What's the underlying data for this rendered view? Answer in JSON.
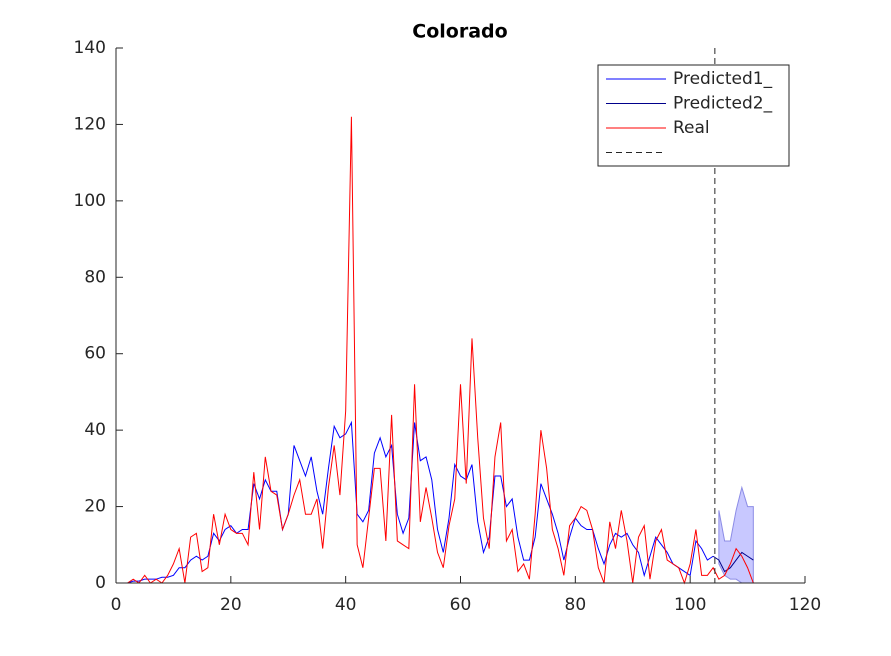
{
  "chart_data": {
    "type": "line",
    "title": "Colorado",
    "x": [
      1,
      2,
      3,
      4,
      5,
      6,
      7,
      8,
      9,
      10,
      11,
      12,
      13,
      14,
      15,
      16,
      17,
      18,
      19,
      20,
      21,
      22,
      23,
      24,
      25,
      26,
      27,
      28,
      29,
      30,
      31,
      32,
      33,
      34,
      35,
      36,
      37,
      38,
      39,
      40,
      41,
      42,
      43,
      44,
      45,
      46,
      47,
      48,
      49,
      50,
      51,
      52,
      53,
      54,
      55,
      56,
      57,
      58,
      59,
      60,
      61,
      62,
      63,
      64,
      65,
      66,
      67,
      68,
      69,
      70,
      71,
      72,
      73,
      74,
      75,
      76,
      77,
      78,
      79,
      80,
      81,
      82,
      83,
      84,
      85,
      86,
      87,
      88,
      89,
      90,
      91,
      92,
      93,
      94,
      95,
      96,
      97,
      98,
      99,
      100,
      101,
      102,
      103,
      104,
      105,
      106,
      107,
      108,
      109,
      110,
      111
    ],
    "series": [
      {
        "name": "Predicted1_",
        "color": "#0000ff",
        "values": [
          0,
          0,
          0.5,
          0.5,
          1,
          1,
          1,
          1.5,
          1.5,
          2,
          4,
          4,
          6,
          7,
          6,
          7,
          13,
          11,
          14,
          15,
          13,
          14,
          14,
          26,
          22,
          27,
          24,
          24,
          14,
          18,
          36,
          32,
          28,
          33,
          24,
          18,
          30,
          41,
          38,
          39,
          42,
          18,
          16,
          19,
          34,
          38,
          33,
          36,
          18,
          13,
          17,
          42,
          32,
          33,
          27,
          14,
          8,
          17,
          31,
          28,
          27,
          31,
          16,
          8,
          12,
          28,
          28,
          20,
          22,
          12,
          6,
          6,
          12,
          26,
          22,
          18,
          13,
          6,
          12,
          17,
          15,
          14,
          14,
          9,
          5,
          10,
          13,
          12,
          13,
          10,
          8,
          2,
          7,
          12,
          10,
          8,
          5,
          4,
          3,
          2,
          11,
          9,
          6,
          7,
          null,
          null,
          null,
          null,
          null,
          null,
          null
        ]
      },
      {
        "name": "Predicted2_",
        "color": "#00008b",
        "x": [
          104,
          105,
          106,
          107,
          108,
          109,
          110,
          111
        ],
        "values": [
          7,
          6,
          3,
          4,
          6,
          8,
          7,
          6
        ]
      },
      {
        "name": "Real",
        "color": "#ff0000",
        "values": [
          0,
          0,
          1,
          0,
          2,
          0,
          1,
          0,
          2,
          5,
          9,
          0,
          12,
          13,
          3,
          4,
          18,
          10,
          18,
          14,
          13,
          13,
          10,
          29,
          14,
          33,
          24,
          23,
          14,
          18,
          23,
          27,
          18,
          18,
          22,
          9,
          25,
          36,
          23,
          45,
          122,
          10,
          4,
          17,
          30,
          30,
          11,
          44,
          11,
          10,
          9,
          52,
          16,
          25,
          17,
          8,
          4,
          15,
          22,
          52,
          26,
          64,
          38,
          17,
          9,
          33,
          42,
          11,
          14,
          3,
          5,
          1,
          18,
          40,
          30,
          14,
          9,
          2,
          15,
          17,
          20,
          19,
          14,
          4,
          0,
          16,
          9,
          19,
          11,
          0,
          12,
          15,
          1,
          11,
          14,
          6,
          5,
          4,
          0,
          5,
          14,
          2,
          2,
          4,
          1,
          2,
          5,
          9,
          7,
          4,
          0
        ]
      }
    ],
    "band": {
      "color": "#c8c8ff",
      "edge": "#8c8ce6",
      "x": [
        105,
        106,
        107,
        108,
        109,
        110,
        111
      ],
      "upper": [
        19,
        11,
        11,
        19,
        25,
        20,
        20
      ],
      "lower": [
        5,
        2,
        1,
        1,
        0,
        0,
        0
      ]
    },
    "vline": 104.3,
    "xlim": [
      0,
      120
    ],
    "xticks": [
      0,
      20,
      40,
      60,
      80,
      100,
      120
    ],
    "ylim": [
      0,
      140
    ],
    "yticks": [
      0,
      20,
      40,
      60,
      80,
      100,
      120,
      140
    ],
    "grid": false,
    "legend": "northeast"
  }
}
